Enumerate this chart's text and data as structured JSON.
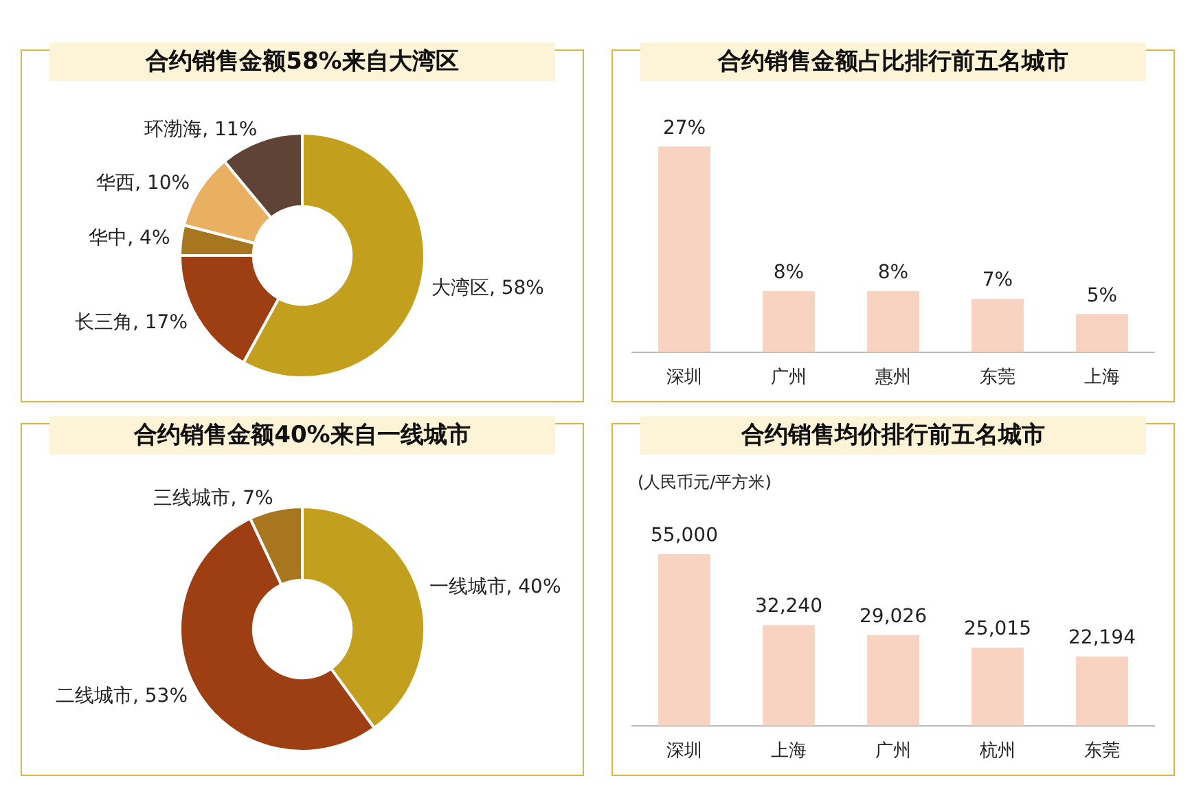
{
  "chart_data": [
    {
      "type": "donut",
      "title": "合约销售金额58%来自大湾区",
      "categories": [
        "大湾区",
        "长三角",
        "华中",
        "华西",
        "环渤海"
      ],
      "values": [
        58,
        17,
        4,
        10,
        11
      ],
      "value_labels": [
        "58%",
        "17%",
        "4%",
        "10%",
        "11%"
      ],
      "colors": [
        "#c39f1e",
        "#9e3f13",
        "#a8761f",
        "#e8b060",
        "#5e4336"
      ]
    },
    {
      "type": "bar",
      "title": "合约销售金额占比排行前五名城市",
      "categories": [
        "深圳",
        "广州",
        "惠州",
        "东莞",
        "上海"
      ],
      "values": [
        27,
        8,
        8,
        7,
        5
      ],
      "value_labels": [
        "27%",
        "8%",
        "8%",
        "7%",
        "5%"
      ],
      "color": "#f9d3c1"
    },
    {
      "type": "donut",
      "title": "合约销售金额40%来自一线城市",
      "categories": [
        "一线城市",
        "二线城市",
        "三线城市"
      ],
      "values": [
        40,
        53,
        7
      ],
      "value_labels": [
        "40%",
        "53%",
        "7%"
      ],
      "colors": [
        "#c39f1e",
        "#9e3f13",
        "#a8761f"
      ]
    },
    {
      "type": "bar",
      "title": "合约销售均价排行前五名城市",
      "subtitle": "(人民币元/平方米)",
      "categories": [
        "深圳",
        "上海",
        "广州",
        "杭州",
        "东莞"
      ],
      "values": [
        55000,
        32240,
        29026,
        25015,
        22194
      ],
      "value_labels": [
        "55,000",
        "32,240",
        "29,026",
        "25,015",
        "22,194"
      ],
      "color": "#f9d3c1"
    }
  ]
}
